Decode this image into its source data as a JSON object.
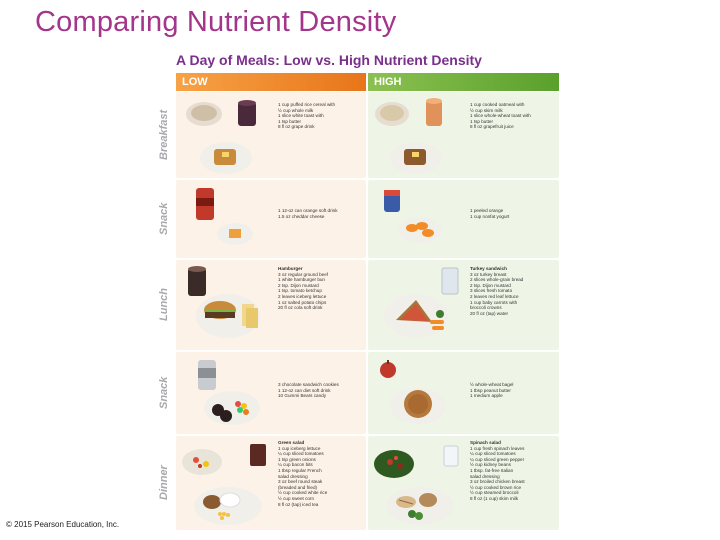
{
  "slide": {
    "title": "Comparing Nutrient Density",
    "copyright": "© 2015 Pearson Education, Inc."
  },
  "figure": {
    "title": "A Day of Meals: Low vs. High Nutrient Density",
    "low_header": "LOW",
    "high_header": "HIGH",
    "colors": {
      "low": "#e8751a",
      "high": "#5aa02c",
      "title": "#a3358a"
    }
  },
  "meals": [
    {
      "label": "Breakfast",
      "low": {
        "title": "",
        "items": [
          "1 cup puffed rice cereal with",
          "½ cup whole milk",
          "1 slice white toast with",
          "1 tsp butter",
          "8 fl oz grape drink"
        ]
      },
      "high": {
        "title": "",
        "items": [
          "1 cup cooked oatmeal with",
          "½ cup skim milk",
          "1 slice whole-wheat toast with",
          "1 tsp butter",
          "8 fl oz grapefruit juice"
        ]
      }
    },
    {
      "label": "Snack",
      "low": {
        "title": "",
        "items": [
          "1 12-oz can orange soft drink",
          "1.5 oz cheddar cheese"
        ]
      },
      "high": {
        "title": "",
        "items": [
          "1 peeled orange",
          "1 cup nonfat yogurt"
        ]
      }
    },
    {
      "label": "Lunch",
      "low": {
        "title": "Hamburger",
        "items": [
          "3 oz regular ground beef",
          "1 white hamburger bun",
          "2 tsp. Dijon mustard",
          "1 tsp. tomato ketchup",
          "2 leaves iceberg lettuce",
          "1 oz salted potato chips",
          "20 fl oz cola soft drink"
        ]
      },
      "high": {
        "title": "Turkey sandwich",
        "items": [
          "3 oz turkey breast",
          "2 slices whole-grain bread",
          "2 tsp. Dijon mustard",
          "3 slices fresh tomato",
          "2 leaves red leaf lettuce",
          "1 cup baby carrots with",
          "broccoli crowns",
          "20 fl oz (tap) water"
        ]
      }
    },
    {
      "label": "Snack",
      "low": {
        "title": "",
        "items": [
          "3 chocolate sandwich cookies",
          "1 12-oz can diet soft drink",
          "10 Gummi Bears candy"
        ]
      },
      "high": {
        "title": "",
        "items": [
          "½ whole-wheat bagel",
          "1 tbsp peanut butter",
          "1 medium apple"
        ]
      }
    },
    {
      "label": "Dinner",
      "low": {
        "title": "Green salad",
        "items": [
          "1 cup iceberg lettuce",
          "¼ cup sliced tomatoes",
          "1 tsp green onions",
          "¼ cup bacon bits",
          "1 tbsp regular French",
          "salad dressing",
          "3 oz beef round steak",
          "(breaded and fried)",
          "½ cup cooked white rice",
          "½ cup sweet corn",
          "8 fl oz (tap) iced tea"
        ]
      },
      "high": {
        "title": "Spinach salad",
        "items": [
          "1 cup fresh spinach leaves",
          "¼ cup sliced tomatoes",
          "¼ cup sliced green pepper",
          "½ cup kidney beans",
          "1 tbsp. fat-free Italian",
          "salad dressing",
          "3 oz broiled chicken breast",
          "½ cup cooked brown rice",
          "½ cup steamed broccoli",
          "8 fl oz (1 cup) skim milk"
        ]
      }
    }
  ]
}
